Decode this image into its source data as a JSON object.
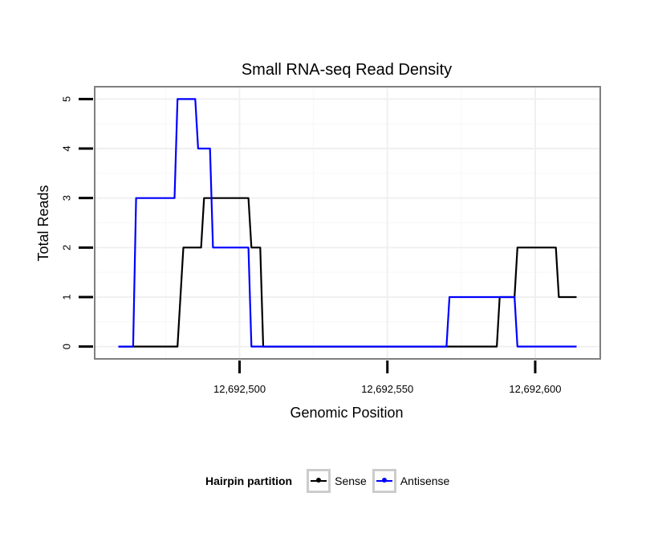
{
  "chart_data": {
    "type": "line",
    "title": "Small RNA-seq Read Density",
    "xlabel": "Genomic Position",
    "ylabel": "Total Reads",
    "xlim": [
      12692451,
      12692622
    ],
    "ylim": [
      -0.25,
      5.25
    ],
    "x_ticks": [
      12692500,
      12692550,
      12692600
    ],
    "x_tick_labels": [
      "12,692,500",
      "12,692,550",
      "12,692,600"
    ],
    "y_ticks": [
      0,
      1,
      2,
      3,
      4,
      5
    ],
    "y_tick_labels": [
      "0",
      "1",
      "2",
      "3",
      "4",
      "5"
    ],
    "grid": true,
    "series": [
      {
        "name": "Sense",
        "color": "#000000",
        "x": [
          12692459,
          12692479,
          12692481,
          12692487,
          12692488,
          12692503,
          12692504,
          12692507,
          12692508,
          12692587,
          12692588,
          12692593,
          12692594,
          12692607,
          12692608,
          12692614
        ],
        "y": [
          0,
          0,
          2,
          2,
          3,
          3,
          2,
          2,
          0,
          0,
          1,
          1,
          2,
          2,
          1,
          1
        ]
      },
      {
        "name": "Antisense",
        "color": "#0000ff",
        "x": [
          12692459,
          12692464,
          12692465,
          12692478,
          12692479,
          12692485,
          12692486,
          12692490,
          12692491,
          12692503,
          12692504,
          12692570,
          12692571,
          12692593,
          12692594,
          12692614
        ],
        "y": [
          0,
          0,
          3,
          3,
          5,
          5,
          4,
          4,
          2,
          2,
          0,
          0,
          1,
          1,
          0,
          0
        ]
      }
    ]
  },
  "legend": {
    "title": "Hairpin partition",
    "items": [
      {
        "label": "Sense",
        "color": "#000000"
      },
      {
        "label": "Antisense",
        "color": "#0000ff"
      }
    ]
  }
}
